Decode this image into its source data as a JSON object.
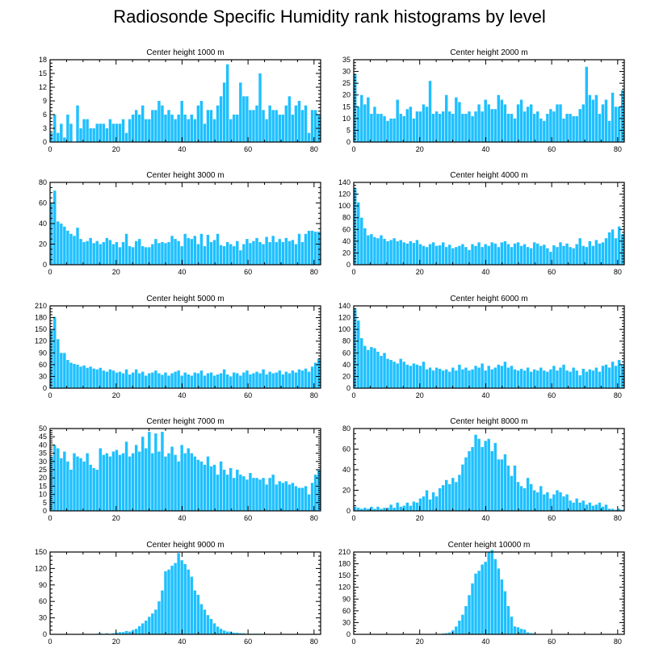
{
  "title": "Radiosonde Specific Humidity rank histograms by level",
  "bar_color": "#1ec0ff",
  "chart_data": [
    {
      "type": "bar",
      "title": "Center height 1000 m",
      "xlim": [
        0,
        82
      ],
      "ylim": [
        0,
        18
      ],
      "xticks": [
        0,
        20,
        40,
        60,
        80
      ],
      "yticks": [
        0,
        3,
        6,
        9,
        12,
        15,
        18
      ],
      "values": [
        2,
        6,
        2,
        4,
        1,
        6,
        4,
        0,
        8,
        3,
        5,
        5,
        3,
        3,
        4,
        4,
        4,
        3,
        5,
        4,
        4,
        4,
        5,
        2,
        5,
        6,
        7,
        6,
        8,
        5,
        5,
        7,
        7,
        9,
        8,
        6,
        7,
        6,
        5,
        6,
        9,
        6,
        5,
        6,
        5,
        8,
        9,
        4,
        7,
        7,
        5,
        8,
        10,
        13,
        17,
        5,
        6,
        6,
        13,
        10,
        10,
        7,
        7,
        8,
        15,
        7,
        5,
        8,
        7,
        7,
        6,
        6,
        8,
        10,
        6,
        8,
        9,
        7,
        8,
        2,
        7,
        7,
        6
      ]
    },
    {
      "type": "bar",
      "title": "Center height 2000 m",
      "xlim": [
        0,
        82
      ],
      "ylim": [
        0,
        35
      ],
      "xticks": [
        0,
        20,
        40,
        60,
        80
      ],
      "yticks": [
        0,
        5,
        10,
        15,
        20,
        25,
        30,
        35
      ],
      "values": [
        29,
        15,
        20,
        16,
        19,
        12,
        15,
        12,
        12,
        11,
        9,
        10,
        10,
        18,
        12,
        11,
        14,
        15,
        10,
        13,
        13,
        16,
        15,
        26,
        12,
        13,
        12,
        13,
        20,
        13,
        12,
        19,
        17,
        12,
        12,
        13,
        11,
        13,
        16,
        13,
        18,
        16,
        14,
        14,
        20,
        18,
        16,
        12,
        12,
        10,
        16,
        18,
        13,
        15,
        16,
        12,
        13,
        10,
        9,
        12,
        14,
        13,
        16,
        16,
        10,
        12,
        12,
        11,
        11,
        14,
        16,
        32,
        20,
        18,
        20,
        12,
        16,
        18,
        9,
        21,
        15,
        15,
        22
      ]
    },
    {
      "type": "bar",
      "title": "Center height 3000 m",
      "xlim": [
        0,
        82
      ],
      "ylim": [
        0,
        80
      ],
      "xticks": [
        0,
        20,
        40,
        60,
        80
      ],
      "yticks": [
        0,
        20,
        40,
        60,
        80
      ],
      "values": [
        60,
        72,
        42,
        40,
        37,
        33,
        30,
        28,
        36,
        25,
        22,
        23,
        26,
        21,
        23,
        20,
        22,
        26,
        24,
        20,
        22,
        17,
        22,
        30,
        18,
        17,
        23,
        25,
        18,
        17,
        17,
        20,
        25,
        21,
        22,
        21,
        22,
        28,
        25,
        23,
        18,
        30,
        26,
        25,
        28,
        20,
        30,
        18,
        29,
        22,
        24,
        30,
        19,
        18,
        22,
        20,
        18,
        23,
        14,
        20,
        25,
        21,
        23,
        26,
        22,
        20,
        27,
        22,
        28,
        22,
        25,
        22,
        26,
        23,
        24,
        20,
        30,
        22,
        30,
        33,
        33,
        32,
        32
      ]
    },
    {
      "type": "bar",
      "title": "Center height 4000 m",
      "xlim": [
        0,
        82
      ],
      "ylim": [
        0,
        140
      ],
      "xticks": [
        0,
        20,
        40,
        60,
        80
      ],
      "yticks": [
        0,
        20,
        40,
        60,
        80,
        100,
        120,
        140
      ],
      "values": [
        130,
        106,
        80,
        62,
        50,
        52,
        47,
        45,
        50,
        44,
        40,
        42,
        45,
        40,
        42,
        38,
        36,
        40,
        37,
        42,
        35,
        32,
        30,
        35,
        38,
        32,
        33,
        38,
        30,
        34,
        28,
        30,
        32,
        35,
        30,
        25,
        35,
        32,
        38,
        30,
        35,
        32,
        38,
        36,
        30,
        38,
        40,
        35,
        30,
        36,
        38,
        32,
        35,
        30,
        28,
        38,
        36,
        32,
        34,
        28,
        22,
        33,
        30,
        38,
        32,
        36,
        30,
        28,
        35,
        45,
        32,
        30,
        40,
        32,
        42,
        36,
        38,
        45,
        55,
        60,
        45,
        65,
        52
      ]
    },
    {
      "type": "bar",
      "title": "Center height 5000 m",
      "xlim": [
        0,
        82
      ],
      "ylim": [
        0,
        210
      ],
      "xticks": [
        0,
        20,
        40,
        60,
        80
      ],
      "yticks": [
        0,
        30,
        60,
        90,
        120,
        150,
        180,
        210
      ],
      "values": [
        150,
        182,
        125,
        90,
        90,
        72,
        65,
        62,
        60,
        55,
        58,
        52,
        55,
        50,
        48,
        52,
        45,
        42,
        48,
        45,
        40,
        42,
        38,
        48,
        35,
        40,
        48,
        38,
        42,
        32,
        38,
        40,
        45,
        38,
        34,
        40,
        32,
        38,
        42,
        45,
        32,
        40,
        35,
        32,
        40,
        38,
        45,
        32,
        38,
        40,
        32,
        35,
        38,
        48,
        35,
        30,
        40,
        38,
        32,
        40,
        45,
        35,
        38,
        42,
        38,
        48,
        35,
        42,
        38,
        40,
        45,
        35,
        42,
        38,
        45,
        40,
        48,
        45,
        50,
        42,
        55,
        65,
        75
      ]
    },
    {
      "type": "bar",
      "title": "Center height 6000 m",
      "xlim": [
        0,
        82
      ],
      "ylim": [
        0,
        140
      ],
      "xticks": [
        0,
        20,
        40,
        60,
        80
      ],
      "yticks": [
        0,
        20,
        40,
        60,
        80,
        100,
        120,
        140
      ],
      "values": [
        135,
        115,
        85,
        72,
        65,
        70,
        68,
        62,
        55,
        60,
        50,
        48,
        45,
        42,
        50,
        45,
        40,
        38,
        42,
        40,
        38,
        45,
        32,
        35,
        30,
        35,
        33,
        30,
        32,
        28,
        35,
        30,
        40,
        32,
        35,
        30,
        32,
        38,
        35,
        42,
        30,
        38,
        32,
        35,
        40,
        38,
        45,
        35,
        38,
        32,
        30,
        33,
        30,
        35,
        28,
        32,
        30,
        35,
        30,
        28,
        32,
        38,
        30,
        35,
        40,
        30,
        28,
        35,
        30,
        22,
        33,
        28,
        32,
        30,
        35,
        28,
        38,
        40,
        35,
        45,
        38,
        48,
        40
      ]
    },
    {
      "type": "bar",
      "title": "Center height 7000 m",
      "xlim": [
        0,
        82
      ],
      "ylim": [
        0,
        50
      ],
      "xticks": [
        0,
        20,
        40,
        60,
        80
      ],
      "yticks": [
        0,
        5,
        10,
        15,
        20,
        25,
        30,
        35,
        40,
        45,
        50
      ],
      "values": [
        33,
        40,
        38,
        32,
        36,
        30,
        25,
        35,
        33,
        32,
        30,
        35,
        28,
        26,
        25,
        38,
        34,
        35,
        33,
        36,
        37,
        34,
        35,
        42,
        33,
        35,
        40,
        36,
        45,
        38,
        48,
        35,
        47,
        36,
        48,
        33,
        35,
        39,
        34,
        30,
        40,
        35,
        38,
        35,
        33,
        31,
        30,
        28,
        33,
        27,
        28,
        22,
        30,
        25,
        22,
        26,
        20,
        25,
        22,
        21,
        19,
        23,
        20,
        20,
        19,
        20,
        16,
        20,
        22,
        16,
        18,
        17,
        18,
        16,
        17,
        15,
        14,
        14,
        15,
        10,
        17,
        22,
        25
      ]
    },
    {
      "type": "bar",
      "title": "Center height 8000 m",
      "xlim": [
        0,
        82
      ],
      "ylim": [
        0,
        80
      ],
      "xticks": [
        0,
        20,
        40,
        60,
        80
      ],
      "yticks": [
        0,
        20,
        40,
        60,
        80
      ],
      "values": [
        4,
        3,
        2,
        3,
        2,
        4,
        2,
        4,
        2,
        3,
        3,
        6,
        3,
        8,
        4,
        5,
        8,
        5,
        9,
        8,
        12,
        14,
        20,
        11,
        18,
        14,
        22,
        25,
        30,
        26,
        32,
        28,
        35,
        45,
        52,
        58,
        62,
        74,
        70,
        62,
        68,
        70,
        58,
        66,
        50,
        50,
        55,
        44,
        34,
        44,
        28,
        24,
        22,
        32,
        26,
        20,
        18,
        24,
        16,
        18,
        12,
        16,
        20,
        18,
        14,
        16,
        10,
        8,
        12,
        8,
        10,
        6,
        8,
        5,
        6,
        8,
        4,
        6,
        2,
        2,
        1,
        2,
        1
      ]
    },
    {
      "type": "bar",
      "title": "Center height 9000 m",
      "xlim": [
        0,
        82
      ],
      "ylim": [
        0,
        150
      ],
      "xticks": [
        0,
        20,
        40,
        60,
        80
      ],
      "yticks": [
        0,
        30,
        60,
        90,
        120,
        150
      ],
      "values": [
        0,
        0,
        0,
        0,
        0,
        0,
        0,
        0,
        0,
        0,
        0,
        0,
        0,
        0,
        1,
        2,
        1,
        2,
        1,
        2,
        3,
        4,
        4,
        6,
        5,
        8,
        10,
        15,
        20,
        25,
        32,
        38,
        45,
        60,
        80,
        115,
        118,
        125,
        130,
        148,
        135,
        128,
        118,
        105,
        80,
        72,
        55,
        45,
        35,
        28,
        20,
        14,
        10,
        7,
        5,
        5,
        3,
        3,
        2,
        2,
        1,
        1,
        1,
        1,
        1,
        0,
        0,
        0,
        0,
        0,
        0,
        0,
        0,
        0,
        0,
        0,
        0,
        0,
        0,
        0,
        0,
        0,
        0
      ]
    },
    {
      "type": "bar",
      "title": "Center height 10000 m",
      "xlim": [
        0,
        82
      ],
      "ylim": [
        0,
        210
      ],
      "xticks": [
        0,
        20,
        40,
        60,
        80
      ],
      "yticks": [
        0,
        30,
        60,
        90,
        120,
        150,
        180,
        210
      ],
      "values": [
        0,
        0,
        0,
        0,
        0,
        0,
        0,
        0,
        0,
        0,
        0,
        0,
        0,
        0,
        0,
        0,
        0,
        0,
        0,
        0,
        0,
        0,
        0,
        0,
        0,
        0,
        1,
        2,
        3,
        5,
        10,
        20,
        35,
        50,
        72,
        100,
        130,
        155,
        162,
        178,
        185,
        210,
        215,
        192,
        168,
        140,
        110,
        72,
        45,
        20,
        18,
        14,
        12,
        5,
        3,
        2,
        1,
        1,
        1,
        0,
        0,
        0,
        0,
        0,
        0,
        0,
        0,
        0,
        0,
        0,
        0,
        0,
        0,
        0,
        0,
        0,
        0,
        0,
        0,
        0,
        0,
        0,
        0
      ]
    }
  ]
}
